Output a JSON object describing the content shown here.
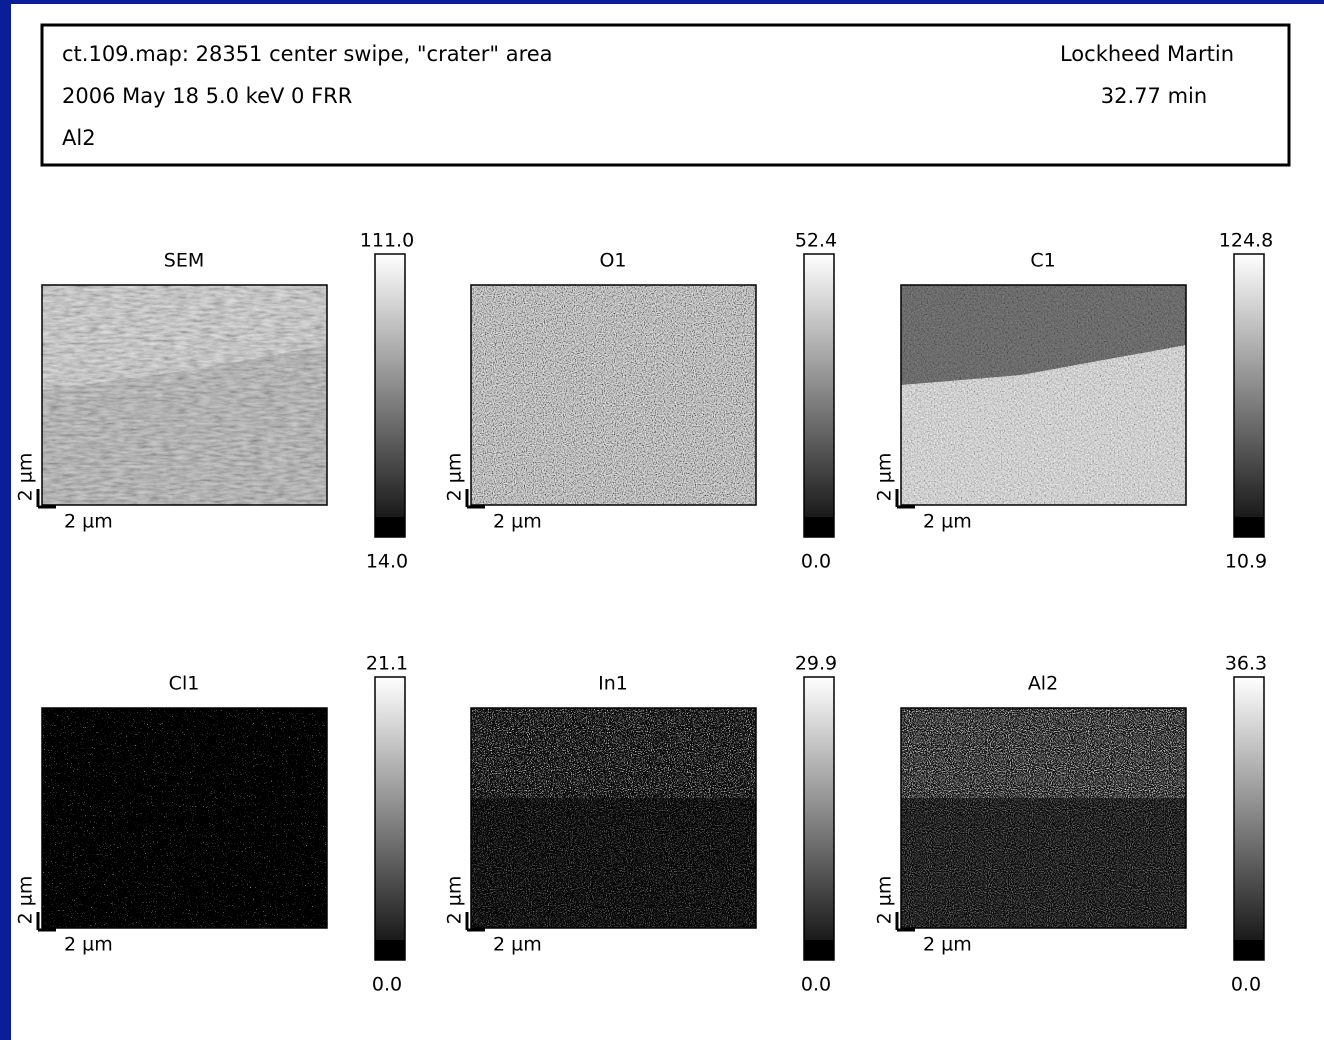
{
  "header": {
    "title": "ct.109.map: 28351 center swipe, \"crater\" area",
    "info": "2006 May 18  5.0 keV  0  FRR",
    "element": "Al2",
    "organization": "Lockheed Martin",
    "duration": "32.77 min"
  },
  "panels": [
    {
      "title": "SEM",
      "max": "111.0",
      "min": "14.0",
      "scale_x": "2 µm",
      "scale_y": "2 µm"
    },
    {
      "title": "O1",
      "max": "52.4",
      "min": "0.0",
      "scale_x": "2 µm",
      "scale_y": "2 µm"
    },
    {
      "title": "C1",
      "max": "124.8",
      "min": "10.9",
      "scale_x": "2 µm",
      "scale_y": "2 µm"
    },
    {
      "title": "Cl1",
      "max": "21.1",
      "min": "0.0",
      "scale_x": "2 µm",
      "scale_y": "2 µm"
    },
    {
      "title": "In1",
      "max": "29.9",
      "min": "0.0",
      "scale_x": "2 µm",
      "scale_y": "2 µm"
    },
    {
      "title": "Al2",
      "max": "36.3",
      "min": "0.0",
      "scale_x": "2 µm",
      "scale_y": "2 µm"
    }
  ]
}
